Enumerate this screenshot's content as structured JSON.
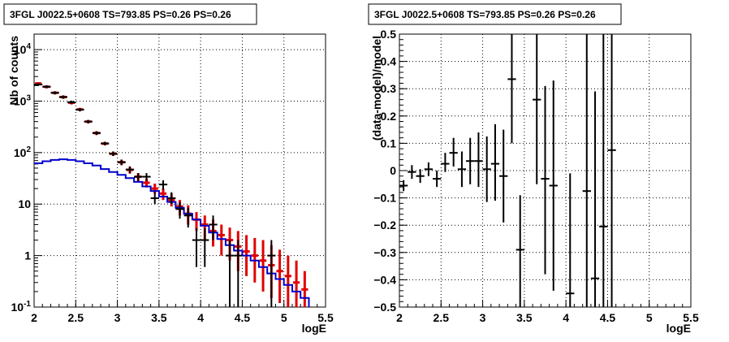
{
  "chart_data": [
    {
      "type": "step",
      "title": "3FGL J0022.5+0608 TS=793.85 PS=0.26 PS=0.26",
      "xlabel": "logE",
      "ylabel": "Nb of counts",
      "xlim": [
        2,
        5.5
      ],
      "ylim": [
        0.1,
        20000
      ],
      "log_y": true,
      "grid": true,
      "x_ticks": [
        "2",
        "2.5",
        "3",
        "3.5",
        "4",
        "4.5",
        "5",
        "5.5"
      ],
      "y_ticks": [
        "10^-1",
        "1",
        "10",
        "10^2",
        "10^3",
        "10^4"
      ],
      "colors": {
        "data": "#000000",
        "model_total": "#e00000",
        "model_source": "#0000cc"
      },
      "bin_width": 0.1,
      "data_points": [
        {
          "x": 2.05,
          "y": 2100,
          "lo": 1970,
          "hi": 2230
        },
        {
          "x": 2.15,
          "y": 1900,
          "lo": 1770,
          "hi": 2030
        },
        {
          "x": 2.25,
          "y": 1450,
          "lo": 1350,
          "hi": 1550
        },
        {
          "x": 2.35,
          "y": 1200,
          "lo": 1110,
          "hi": 1290
        },
        {
          "x": 2.45,
          "y": 950,
          "lo": 880,
          "hi": 1020
        },
        {
          "x": 2.55,
          "y": 680,
          "lo": 630,
          "hi": 730
        },
        {
          "x": 2.65,
          "y": 400,
          "lo": 370,
          "hi": 430
        },
        {
          "x": 2.75,
          "y": 240,
          "lo": 220,
          "hi": 260
        },
        {
          "x": 2.85,
          "y": 150,
          "lo": 138,
          "hi": 162
        },
        {
          "x": 2.95,
          "y": 95,
          "lo": 86,
          "hi": 105
        },
        {
          "x": 3.05,
          "y": 65,
          "lo": 57,
          "hi": 73
        },
        {
          "x": 3.15,
          "y": 47,
          "lo": 40,
          "hi": 54
        },
        {
          "x": 3.25,
          "y": 34,
          "lo": 28,
          "hi": 40
        },
        {
          "x": 3.35,
          "y": 34,
          "lo": 28,
          "hi": 40
        },
        {
          "x": 3.45,
          "y": 13,
          "lo": 10,
          "hi": 17
        },
        {
          "x": 3.55,
          "y": 24,
          "lo": 19,
          "hi": 29
        },
        {
          "x": 3.65,
          "y": 13,
          "lo": 10,
          "hi": 17
        },
        {
          "x": 3.75,
          "y": 8,
          "lo": 5.2,
          "hi": 10.8
        },
        {
          "x": 3.85,
          "y": 6,
          "lo": 3.5,
          "hi": 8.5
        },
        {
          "x": 3.95,
          "y": 2,
          "lo": 0.6,
          "hi": 3.4
        },
        {
          "x": 4.05,
          "y": 2,
          "lo": 0.6,
          "hi": 3.4
        },
        {
          "x": 4.15,
          "y": 4,
          "lo": 2,
          "hi": 6
        },
        {
          "x": 4.35,
          "y": 1,
          "lo": 0.1,
          "hi": 2
        },
        {
          "x": 4.45,
          "y": 1,
          "lo": 0.1,
          "hi": 2
        },
        {
          "x": 4.85,
          "y": 1,
          "lo": 0.1,
          "hi": 2
        }
      ],
      "model_total": [
        {
          "x": 2.05,
          "y": 2200,
          "lo": 2060,
          "hi": 2340
        },
        {
          "x": 2.15,
          "y": 1900,
          "lo": 1780,
          "hi": 2020
        },
        {
          "x": 2.25,
          "y": 1450,
          "lo": 1350,
          "hi": 1550
        },
        {
          "x": 2.35,
          "y": 1200,
          "lo": 1110,
          "hi": 1290
        },
        {
          "x": 2.45,
          "y": 930,
          "lo": 860,
          "hi": 1000
        },
        {
          "x": 2.55,
          "y": 690,
          "lo": 640,
          "hi": 740
        },
        {
          "x": 2.65,
          "y": 400,
          "lo": 370,
          "hi": 430
        },
        {
          "x": 2.75,
          "y": 240,
          "lo": 220,
          "hi": 260
        },
        {
          "x": 2.85,
          "y": 150,
          "lo": 138,
          "hi": 162
        },
        {
          "x": 2.95,
          "y": 95,
          "lo": 86,
          "hi": 105
        },
        {
          "x": 3.05,
          "y": 65,
          "lo": 57,
          "hi": 73
        },
        {
          "x": 3.15,
          "y": 46,
          "lo": 39,
          "hi": 53
        },
        {
          "x": 3.25,
          "y": 34,
          "lo": 28,
          "hi": 40
        },
        {
          "x": 3.35,
          "y": 26,
          "lo": 21,
          "hi": 31
        },
        {
          "x": 3.45,
          "y": 20,
          "lo": 16,
          "hi": 25
        },
        {
          "x": 3.55,
          "y": 16,
          "lo": 12,
          "hi": 20
        },
        {
          "x": 3.65,
          "y": 12,
          "lo": 9,
          "hi": 16
        },
        {
          "x": 3.75,
          "y": 9,
          "lo": 6,
          "hi": 12
        },
        {
          "x": 3.85,
          "y": 6.5,
          "lo": 4,
          "hi": 9.5
        },
        {
          "x": 3.95,
          "y": 5,
          "lo": 3,
          "hi": 7
        },
        {
          "x": 4.05,
          "y": 4,
          "lo": 2,
          "hi": 6
        },
        {
          "x": 4.15,
          "y": 3,
          "lo": 1.5,
          "hi": 5
        },
        {
          "x": 4.25,
          "y": 2.5,
          "lo": 1,
          "hi": 4
        },
        {
          "x": 4.35,
          "y": 2,
          "lo": 0.8,
          "hi": 3.5
        },
        {
          "x": 4.45,
          "y": 1.5,
          "lo": 0.5,
          "hi": 3
        },
        {
          "x": 4.55,
          "y": 1.2,
          "lo": 0.4,
          "hi": 2.5
        },
        {
          "x": 4.65,
          "y": 1,
          "lo": 0.3,
          "hi": 2.2
        },
        {
          "x": 4.75,
          "y": 0.8,
          "lo": 0.2,
          "hi": 2
        },
        {
          "x": 4.85,
          "y": 0.65,
          "lo": 0.15,
          "hi": 1.6
        },
        {
          "x": 4.95,
          "y": 0.5,
          "lo": 0.12,
          "hi": 1.3
        },
        {
          "x": 5.05,
          "y": 0.4,
          "lo": 0.1,
          "hi": 1.0
        },
        {
          "x": 5.15,
          "y": 0.3,
          "lo": 0.1,
          "hi": 0.8
        },
        {
          "x": 5.25,
          "y": 0.22,
          "lo": 0.1,
          "hi": 0.5
        }
      ],
      "model_source": [
        {
          "x": 2.05,
          "y": 62
        },
        {
          "x": 2.15,
          "y": 68
        },
        {
          "x": 2.25,
          "y": 72
        },
        {
          "x": 2.35,
          "y": 74
        },
        {
          "x": 2.45,
          "y": 72
        },
        {
          "x": 2.55,
          "y": 68
        },
        {
          "x": 2.65,
          "y": 62
        },
        {
          "x": 2.75,
          "y": 56
        },
        {
          "x": 2.85,
          "y": 48
        },
        {
          "x": 2.95,
          "y": 42
        },
        {
          "x": 3.05,
          "y": 37
        },
        {
          "x": 3.15,
          "y": 32
        },
        {
          "x": 3.25,
          "y": 27
        },
        {
          "x": 3.35,
          "y": 22
        },
        {
          "x": 3.45,
          "y": 18
        },
        {
          "x": 3.55,
          "y": 14
        },
        {
          "x": 3.65,
          "y": 11
        },
        {
          "x": 3.75,
          "y": 8.5
        },
        {
          "x": 3.85,
          "y": 6.5
        },
        {
          "x": 3.95,
          "y": 5
        },
        {
          "x": 4.05,
          "y": 3.8
        },
        {
          "x": 4.15,
          "y": 2.8
        },
        {
          "x": 4.25,
          "y": 2.1
        },
        {
          "x": 4.35,
          "y": 1.6
        },
        {
          "x": 4.45,
          "y": 1.25
        },
        {
          "x": 4.55,
          "y": 1.0
        },
        {
          "x": 4.65,
          "y": 0.8
        },
        {
          "x": 4.75,
          "y": 0.6
        },
        {
          "x": 4.85,
          "y": 0.45
        },
        {
          "x": 4.95,
          "y": 0.35
        },
        {
          "x": 5.05,
          "y": 0.27
        },
        {
          "x": 5.15,
          "y": 0.2
        },
        {
          "x": 5.25,
          "y": 0.15
        }
      ]
    },
    {
      "type": "scatter",
      "title": "3FGL J0022.5+0608 TS=793.85 PS=0.26 PS=0.26",
      "xlabel": "logE",
      "ylabel": "(data-model)/model",
      "xlim": [
        2,
        5.5
      ],
      "ylim": [
        -0.5,
        0.5
      ],
      "grid": true,
      "x_ticks": [
        "2",
        "2.5",
        "3",
        "3.5",
        "4",
        "4.5",
        "5",
        "5.5"
      ],
      "y_ticks": [
        "-0.5",
        "-0.4",
        "-0.3",
        "-0.2",
        "-0.1",
        "0",
        "0.1",
        "0.2",
        "0.3",
        "0.4",
        "0.5"
      ],
      "colors": {
        "data": "#000000"
      },
      "bin_width": 0.1,
      "points": [
        {
          "x": 2.05,
          "y": -0.055,
          "lo": -0.075,
          "hi": -0.035
        },
        {
          "x": 2.15,
          "y": -0.005,
          "lo": -0.03,
          "hi": 0.02
        },
        {
          "x": 2.25,
          "y": -0.02,
          "lo": -0.045,
          "hi": 0.005
        },
        {
          "x": 2.35,
          "y": 0.005,
          "lo": -0.02,
          "hi": 0.03
        },
        {
          "x": 2.45,
          "y": -0.03,
          "lo": -0.06,
          "hi": 0.0
        },
        {
          "x": 2.55,
          "y": 0.025,
          "lo": -0.005,
          "hi": 0.065
        },
        {
          "x": 2.65,
          "y": 0.065,
          "lo": 0.015,
          "hi": 0.12
        },
        {
          "x": 2.75,
          "y": 0.005,
          "lo": -0.06,
          "hi": 0.07
        },
        {
          "x": 2.85,
          "y": 0.035,
          "lo": -0.05,
          "hi": 0.12
        },
        {
          "x": 2.95,
          "y": 0.035,
          "lo": -0.06,
          "hi": 0.14
        },
        {
          "x": 3.05,
          "y": 0.005,
          "lo": -0.115,
          "hi": 0.125
        },
        {
          "x": 3.15,
          "y": 0.025,
          "lo": -0.11,
          "hi": 0.17
        },
        {
          "x": 3.25,
          "y": -0.02,
          "lo": -0.19,
          "hi": 0.15
        },
        {
          "x": 3.35,
          "y": 0.335,
          "lo": 0.1,
          "hi": 0.5
        },
        {
          "x": 3.45,
          "y": -0.29,
          "lo": -0.5,
          "hi": -0.09
        },
        {
          "x": 3.65,
          "y": 0.26,
          "lo": -0.05,
          "hi": 0.5
        },
        {
          "x": 3.75,
          "y": -0.03,
          "lo": -0.38,
          "hi": 0.31
        },
        {
          "x": 3.85,
          "y": -0.055,
          "lo": -0.44,
          "hi": 0.33
        },
        {
          "x": 4.05,
          "y": -0.45,
          "lo": -0.5,
          "hi": -0.01
        },
        {
          "x": 4.25,
          "y": -0.075,
          "lo": -0.5,
          "hi": 0.5
        },
        {
          "x": 4.35,
          "y": -0.395,
          "lo": -0.5,
          "hi": 0.29
        },
        {
          "x": 4.45,
          "y": -0.205,
          "lo": -0.5,
          "hi": 0.5
        },
        {
          "x": 4.55,
          "y": 0.075,
          "lo": -0.5,
          "hi": 0.5
        }
      ]
    }
  ]
}
